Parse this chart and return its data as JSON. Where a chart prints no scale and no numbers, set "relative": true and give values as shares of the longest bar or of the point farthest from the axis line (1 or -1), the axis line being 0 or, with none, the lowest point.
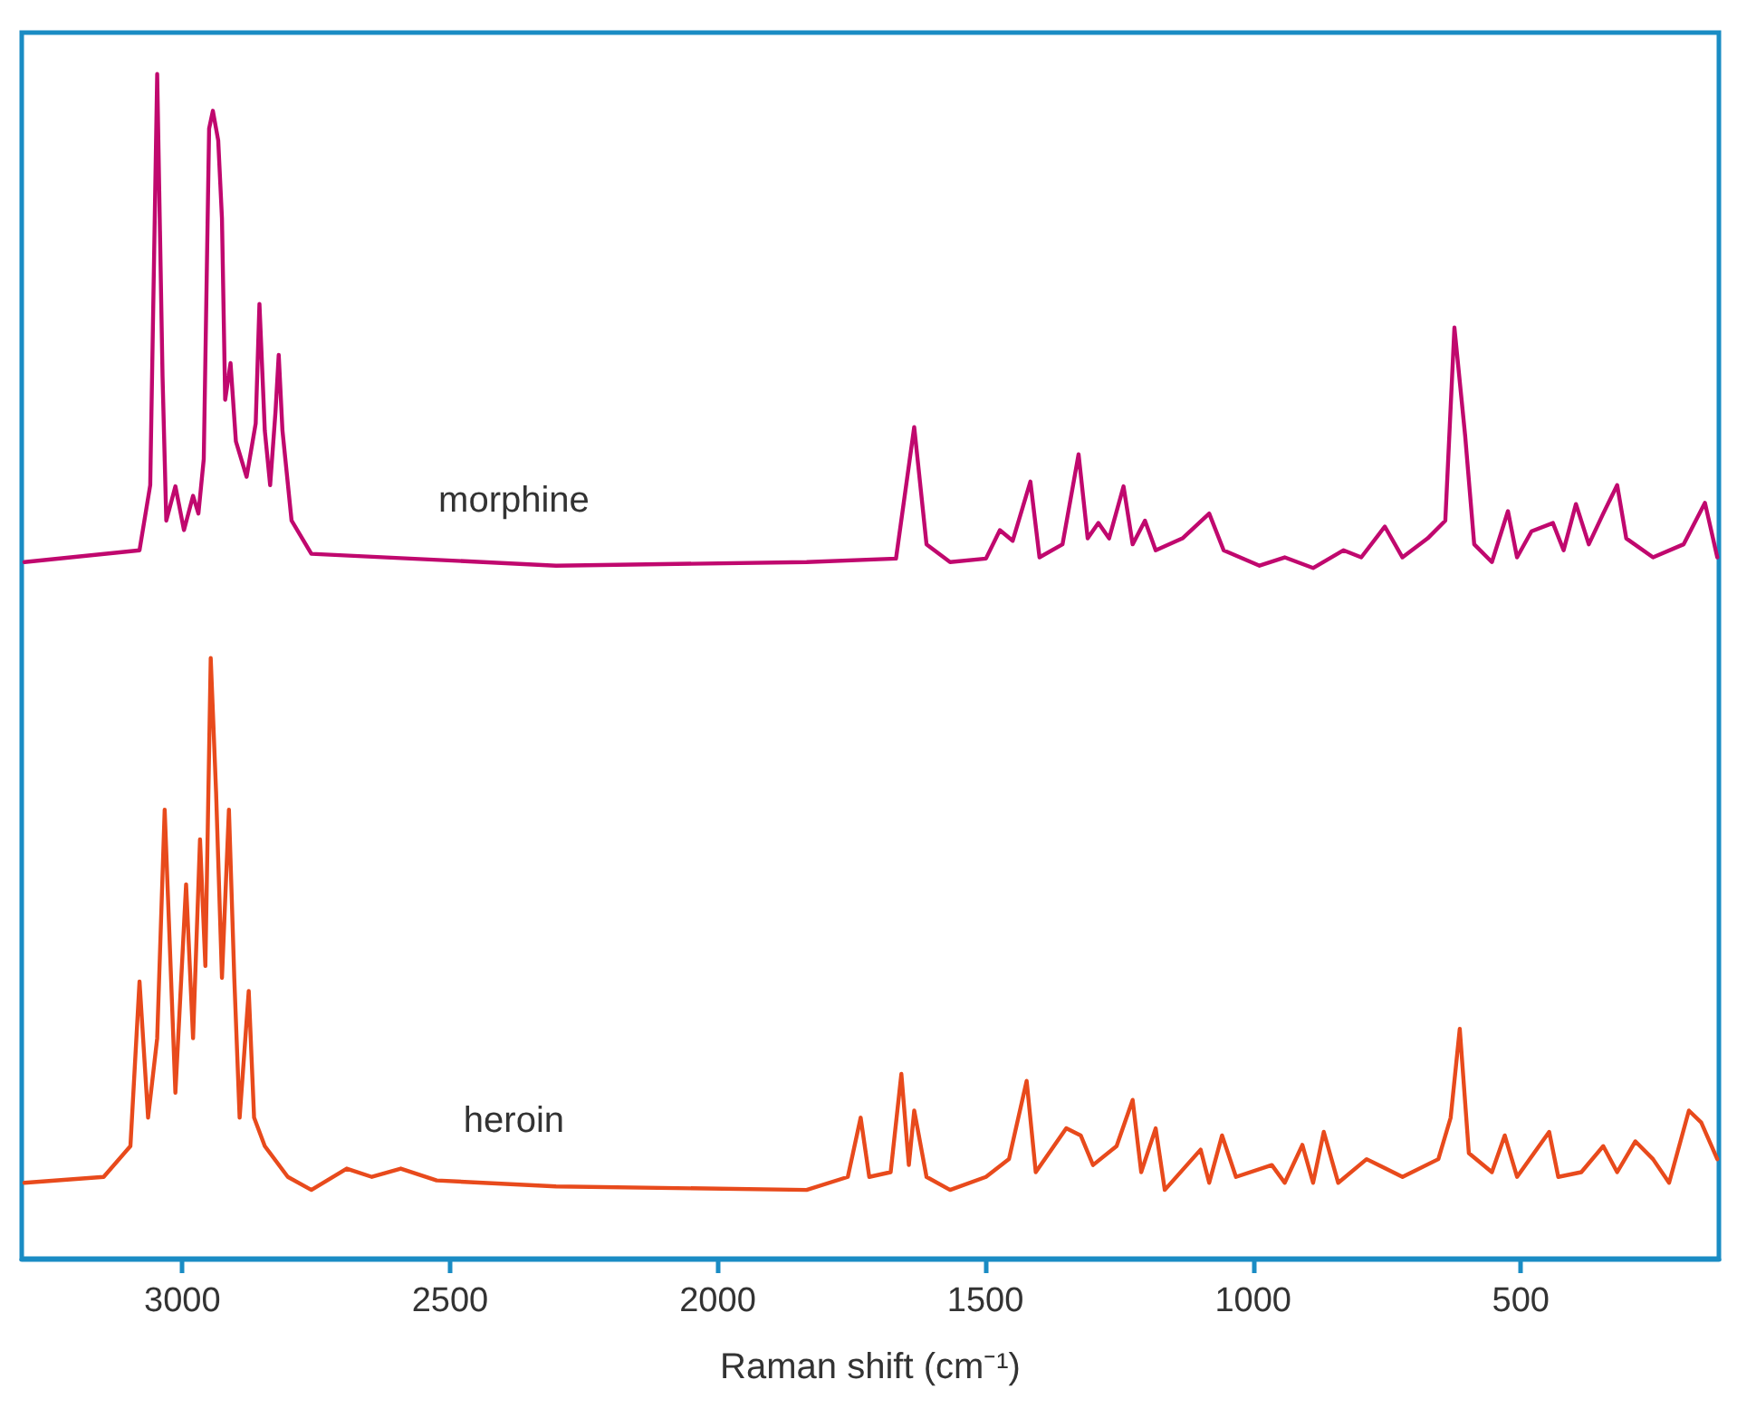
{
  "chart_data": {
    "type": "line",
    "relative": true,
    "xlabel": "Raman shift (cm⁻¹)",
    "xlim": [
      3300,
      130
    ],
    "xticks": [
      3000,
      2500,
      2000,
      1500,
      1000,
      500
    ],
    "grid": false,
    "legend": false,
    "marker": "none",
    "line_style": "solid",
    "series": [
      {
        "name": "morphine",
        "color": "#c0086e",
        "x": [
          3295,
          3080,
          3060,
          3047,
          3037,
          3030,
          3013,
          2997,
          2980,
          2970,
          2960,
          2950,
          2943,
          2933,
          2926,
          2920,
          2910,
          2900,
          2880,
          2863,
          2856,
          2846,
          2836,
          2826,
          2820,
          2813,
          2796,
          2759,
          2302,
          1834,
          1667,
          1633,
          1610,
          1566,
          1499,
          1473,
          1449,
          1416,
          1399,
          1356,
          1326,
          1309,
          1289,
          1269,
          1242,
          1225,
          1202,
          1182,
          1132,
          1082,
          1055,
          988,
          941,
          888,
          831,
          798,
          754,
          721,
          674,
          641,
          624,
          604,
          587,
          554,
          524,
          507,
          480,
          440,
          420,
          397,
          373,
          346,
          320,
          303,
          253,
          196,
          156,
          133
        ],
        "values": [
          0.588,
          0.598,
          0.653,
          1.0,
          0.745,
          0.623,
          0.652,
          0.615,
          0.644,
          0.629,
          0.675,
          0.954,
          0.969,
          0.944,
          0.878,
          0.725,
          0.756,
          0.69,
          0.66,
          0.705,
          0.806,
          0.699,
          0.653,
          0.715,
          0.763,
          0.699,
          0.623,
          0.595,
          0.585,
          0.588,
          0.591,
          0.702,
          0.603,
          0.588,
          0.591,
          0.615,
          0.606,
          0.656,
          0.592,
          0.603,
          0.679,
          0.608,
          0.621,
          0.608,
          0.652,
          0.603,
          0.623,
          0.598,
          0.608,
          0.629,
          0.598,
          0.585,
          0.592,
          0.583,
          0.598,
          0.592,
          0.618,
          0.592,
          0.608,
          0.623,
          0.786,
          0.695,
          0.603,
          0.588,
          0.631,
          0.592,
          0.614,
          0.621,
          0.598,
          0.637,
          0.603,
          0.629,
          0.653,
          0.608,
          0.592,
          0.603,
          0.638,
          0.592
        ]
      },
      {
        "name": "heroin",
        "color": "#e84a1c",
        "x": [
          3295,
          3147,
          3097,
          3080,
          3064,
          3047,
          3033,
          3013,
          2993,
          2980,
          2967,
          2957,
          2947,
          2937,
          2926,
          2913,
          2903,
          2893,
          2876,
          2866,
          2846,
          2803,
          2759,
          2693,
          2646,
          2592,
          2525,
          2302,
          1834,
          1757,
          1733,
          1717,
          1677,
          1657,
          1643,
          1633,
          1610,
          1566,
          1499,
          1456,
          1423,
          1406,
          1349,
          1322,
          1299,
          1255,
          1225,
          1209,
          1182,
          1165,
          1098,
          1082,
          1058,
          1032,
          965,
          941,
          908,
          888,
          868,
          841,
          788,
          721,
          654,
          631,
          614,
          597,
          554,
          530,
          507,
          447,
          430,
          387,
          346,
          320,
          286,
          253,
          223,
          186,
          163,
          133
        ],
        "values": [
          0.064,
          0.069,
          0.095,
          0.234,
          0.119,
          0.186,
          0.379,
          0.14,
          0.316,
          0.186,
          0.354,
          0.247,
          0.507,
          0.394,
          0.237,
          0.379,
          0.237,
          0.119,
          0.226,
          0.119,
          0.095,
          0.069,
          0.058,
          0.076,
          0.069,
          0.076,
          0.066,
          0.061,
          0.058,
          0.069,
          0.119,
          0.069,
          0.073,
          0.156,
          0.079,
          0.125,
          0.069,
          0.058,
          0.069,
          0.084,
          0.15,
          0.073,
          0.11,
          0.104,
          0.079,
          0.095,
          0.134,
          0.073,
          0.11,
          0.058,
          0.092,
          0.064,
          0.104,
          0.069,
          0.079,
          0.064,
          0.096,
          0.064,
          0.107,
          0.064,
          0.084,
          0.069,
          0.084,
          0.119,
          0.194,
          0.089,
          0.073,
          0.104,
          0.069,
          0.107,
          0.069,
          0.073,
          0.095,
          0.073,
          0.099,
          0.084,
          0.064,
          0.125,
          0.115,
          0.084
        ]
      }
    ]
  }
}
